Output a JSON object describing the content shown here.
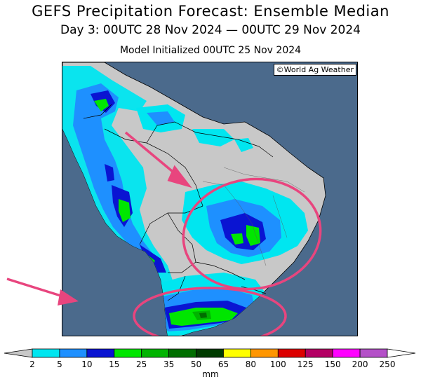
{
  "header": {
    "title": "GEFS Precipitation Forecast: Ensemble Median",
    "valid_period": "Day 3: 00UTC 28 Nov 2024 — 00UTC 29 Nov 2024",
    "initialized": "Model Initialized 00UTC 25 Nov 2024"
  },
  "map": {
    "credit": "©World Ag Weather",
    "ocean_color": "#4b6a8c",
    "land_color": "#c8c8c8",
    "highlight_color": "#e8457e"
  },
  "legend": {
    "units": "mm",
    "ticks": [
      "2",
      "5",
      "10",
      "15",
      "25",
      "35",
      "50",
      "65",
      "80",
      "100",
      "125",
      "150",
      "200",
      "250"
    ],
    "colors": [
      "#00e6f0",
      "#1e90ff",
      "#0a14d2",
      "#00e600",
      "#00b400",
      "#006e00",
      "#003c00",
      "#ffff00",
      "#ff9600",
      "#dc0000",
      "#b40064",
      "#ff00ff",
      "#b450c8"
    ],
    "under_color": "#c8c8c8",
    "over_color": "#ffffff"
  }
}
